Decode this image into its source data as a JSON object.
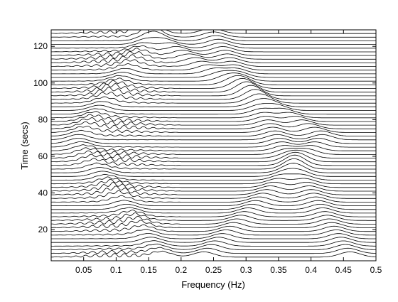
{
  "chart_data": {
    "type": "line",
    "subtype": "waterfall",
    "title": "",
    "xlabel": "Frequency (Hz)",
    "ylabel": "Time (secs)",
    "xlim": [
      0,
      0.5
    ],
    "ylim": [
      3,
      129
    ],
    "xticks": [
      0.05,
      0.1,
      0.15,
      0.2,
      0.25,
      0.3,
      0.35,
      0.4,
      0.45,
      0.5
    ],
    "xtick_labels": [
      "0.05",
      "0.1",
      "0.15",
      "0.2",
      "0.25",
      "0.3",
      "0.35",
      "0.4",
      "0.45",
      "0.5"
    ],
    "yticks": [
      20,
      40,
      60,
      80,
      100,
      120
    ],
    "ytick_labels": [
      "20",
      "40",
      "60",
      "80",
      "100",
      "120"
    ],
    "grid": false,
    "legend": "none",
    "trace_count": 63,
    "time_start": 5,
    "time_step": 2,
    "components": [
      {
        "kind": "chirp",
        "f0": 0.46,
        "f1": 0.245,
        "t0": 5,
        "t1": 128
      },
      {
        "kind": "chirp",
        "f0": 0.235,
        "f1": 0.42,
        "t0": 5,
        "t1": 70
      },
      {
        "kind": "chirp",
        "f0": 0.42,
        "f1": 0.14,
        "t0": 70,
        "t1": 128
      },
      {
        "kind": "chirp",
        "f0": 0.17,
        "f1": 0.04,
        "t0": 5,
        "t1": 68
      },
      {
        "kind": "chirp",
        "f0": 0.04,
        "f1": 0.16,
        "t0": 68,
        "t1": 128
      }
    ],
    "line_color": "#000000",
    "background_color": "#ffffff"
  }
}
